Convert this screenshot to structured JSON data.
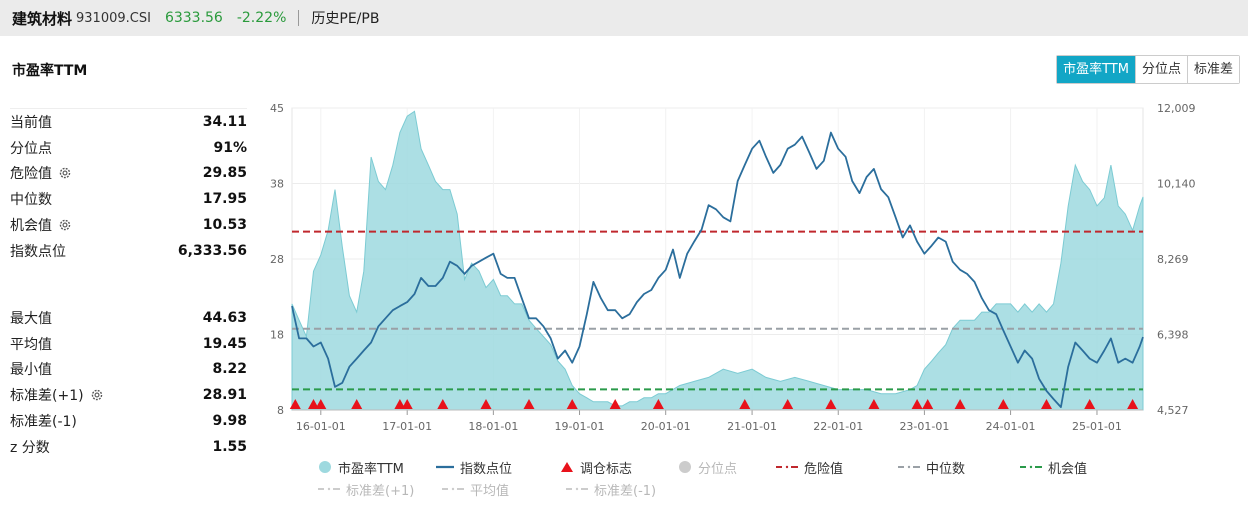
{
  "header": {
    "name": "建筑材料",
    "code": "931009.CSI",
    "price": "6333.56",
    "change": "-2.22%",
    "history_link": "历史PE/PB"
  },
  "section_title": "市盈率TTM",
  "tabs": [
    "市盈率TTM",
    "分位点",
    "标准差"
  ],
  "stats_group1": [
    {
      "label": "当前值",
      "value": "34.11",
      "gear": false
    },
    {
      "label": "分位点",
      "value": "91%",
      "gear": false
    },
    {
      "label": "危险值",
      "value": "29.85",
      "gear": true
    },
    {
      "label": "中位数",
      "value": "17.95",
      "gear": false
    },
    {
      "label": "机会值",
      "value": "10.53",
      "gear": true
    },
    {
      "label": "指数点位",
      "value": "6,333.56",
      "gear": false
    }
  ],
  "stats_group2": [
    {
      "label": "最大值",
      "value": "44.63",
      "gear": false
    },
    {
      "label": "平均值",
      "value": "19.45",
      "gear": false
    },
    {
      "label": "最小值",
      "value": "8.22",
      "gear": false
    },
    {
      "label": "标准差(+1)",
      "value": "28.91",
      "gear": true
    },
    {
      "label": "标准差(-1)",
      "value": "9.98",
      "gear": false
    },
    {
      "label": "z 分数",
      "value": "1.55",
      "gear": false
    }
  ],
  "legend": {
    "row1": [
      "市盈率TTM",
      "指数点位",
      "调仓标志",
      "分位点",
      "危险值",
      "中位数",
      "机会值"
    ],
    "row2": [
      "标准差(+1)",
      "平均值",
      "标准差(-1)"
    ]
  },
  "colors": {
    "pe_fill": "#9ed9df",
    "pe_stroke": "#7ccbd3",
    "index_line": "#2b6e9c",
    "danger": "#c0282d",
    "median": "#9aa0a6",
    "opportunity": "#2a9a4a",
    "marker": "#e8121b",
    "accent_tab": "#12a6c6"
  },
  "chart_data": {
    "type": "area",
    "title": "",
    "x_tick_labels": [
      "16-01-01",
      "17-01-01",
      "18-01-01",
      "19-01-01",
      "20-01-01",
      "21-01-01",
      "22-01-01",
      "23-01-01",
      "24-01-01",
      "25-01-01"
    ],
    "x_range": [
      "2015-09-01",
      "2025-07-15"
    ],
    "left_axis": {
      "label": "",
      "ticks": [
        "45",
        "38",
        "28",
        "18",
        "8"
      ],
      "ylim": [
        8,
        45
      ]
    },
    "right_axis": {
      "label": "",
      "ticks": [
        "12,009",
        "10,140",
        "8,269",
        "6,398",
        "4,527"
      ],
      "ylim": [
        4527,
        12009
      ]
    },
    "grid": true,
    "reference_lines": {
      "danger": 29.85,
      "median": 17.95,
      "opportunity": 10.53
    },
    "series": [
      {
        "name": "市盈率TTM",
        "axis": "left",
        "points": [
          [
            "2015-09-01",
            21
          ],
          [
            "2015-10-01",
            19
          ],
          [
            "2015-11-01",
            17
          ],
          [
            "2015-12-01",
            25
          ],
          [
            "2016-01-01",
            27
          ],
          [
            "2016-02-01",
            30
          ],
          [
            "2016-03-01",
            35
          ],
          [
            "2016-04-01",
            28
          ],
          [
            "2016-05-01",
            22
          ],
          [
            "2016-06-01",
            20
          ],
          [
            "2016-07-01",
            25
          ],
          [
            "2016-08-01",
            39
          ],
          [
            "2016-09-01",
            36
          ],
          [
            "2016-10-01",
            35
          ],
          [
            "2016-11-01",
            38
          ],
          [
            "2016-12-01",
            42
          ],
          [
            "2017-01-01",
            44
          ],
          [
            "2017-02-01",
            44.6
          ],
          [
            "2017-03-01",
            40
          ],
          [
            "2017-04-01",
            38
          ],
          [
            "2017-05-01",
            36
          ],
          [
            "2017-06-01",
            35
          ],
          [
            "2017-07-01",
            35
          ],
          [
            "2017-08-01",
            32
          ],
          [
            "2017-09-01",
            24
          ],
          [
            "2017-10-01",
            26
          ],
          [
            "2017-11-01",
            25
          ],
          [
            "2017-12-01",
            23
          ],
          [
            "2018-01-01",
            24
          ],
          [
            "2018-02-01",
            22
          ],
          [
            "2018-03-01",
            22
          ],
          [
            "2018-04-01",
            21
          ],
          [
            "2018-05-01",
            21
          ],
          [
            "2018-06-01",
            19
          ],
          [
            "2018-07-01",
            18
          ],
          [
            "2018-08-01",
            17
          ],
          [
            "2018-09-01",
            16
          ],
          [
            "2018-10-01",
            14
          ],
          [
            "2018-11-01",
            13
          ],
          [
            "2018-12-01",
            11
          ],
          [
            "2019-01-01",
            10
          ],
          [
            "2019-02-01",
            9.5
          ],
          [
            "2019-03-01",
            9
          ],
          [
            "2019-04-01",
            9
          ],
          [
            "2019-05-01",
            9
          ],
          [
            "2019-06-01",
            8.5
          ],
          [
            "2019-07-01",
            8.5
          ],
          [
            "2019-08-01",
            9
          ],
          [
            "2019-09-01",
            9
          ],
          [
            "2019-10-01",
            9.5
          ],
          [
            "2019-11-01",
            9.5
          ],
          [
            "2019-12-01",
            10
          ],
          [
            "2020-01-01",
            10
          ],
          [
            "2020-03-01",
            11
          ],
          [
            "2020-05-01",
            11.5
          ],
          [
            "2020-07-01",
            12
          ],
          [
            "2020-09-01",
            13
          ],
          [
            "2020-11-01",
            12.5
          ],
          [
            "2021-01-01",
            13
          ],
          [
            "2021-03-01",
            12
          ],
          [
            "2021-05-01",
            11.5
          ],
          [
            "2021-07-01",
            12
          ],
          [
            "2021-09-01",
            11.5
          ],
          [
            "2021-11-01",
            11
          ],
          [
            "2022-01-01",
            10.5
          ],
          [
            "2022-03-01",
            10.5
          ],
          [
            "2022-05-01",
            10.5
          ],
          [
            "2022-07-01",
            10
          ],
          [
            "2022-09-01",
            10
          ],
          [
            "2022-11-01",
            10.5
          ],
          [
            "2022-12-01",
            11
          ],
          [
            "2023-01-01",
            13
          ],
          [
            "2023-02-01",
            14
          ],
          [
            "2023-03-01",
            15
          ],
          [
            "2023-04-01",
            16
          ],
          [
            "2023-05-01",
            18
          ],
          [
            "2023-06-01",
            19
          ],
          [
            "2023-07-01",
            19
          ],
          [
            "2023-08-01",
            19
          ],
          [
            "2023-09-01",
            20
          ],
          [
            "2023-10-01",
            20
          ],
          [
            "2023-11-01",
            21
          ],
          [
            "2023-12-01",
            21
          ],
          [
            "2024-01-01",
            21
          ],
          [
            "2024-02-01",
            20
          ],
          [
            "2024-03-01",
            21
          ],
          [
            "2024-04-01",
            20
          ],
          [
            "2024-05-01",
            21
          ],
          [
            "2024-06-01",
            20
          ],
          [
            "2024-07-01",
            21
          ],
          [
            "2024-08-01",
            26
          ],
          [
            "2024-09-01",
            33
          ],
          [
            "2024-10-01",
            38
          ],
          [
            "2024-11-01",
            36
          ],
          [
            "2024-12-01",
            35
          ],
          [
            "2025-01-01",
            33
          ],
          [
            "2025-02-01",
            34
          ],
          [
            "2025-03-01",
            38
          ],
          [
            "2025-04-01",
            33
          ],
          [
            "2025-05-01",
            32
          ],
          [
            "2025-06-01",
            30
          ],
          [
            "2025-07-01",
            33
          ],
          [
            "2025-07-15",
            34.11
          ]
        ]
      },
      {
        "name": "指数点位",
        "axis": "right",
        "points": [
          [
            "2015-09-01",
            7100
          ],
          [
            "2015-10-01",
            6300
          ],
          [
            "2015-11-01",
            6300
          ],
          [
            "2015-12-01",
            6100
          ],
          [
            "2016-01-01",
            6200
          ],
          [
            "2016-02-01",
            5800
          ],
          [
            "2016-03-01",
            5100
          ],
          [
            "2016-04-01",
            5200
          ],
          [
            "2016-05-01",
            5600
          ],
          [
            "2016-06-01",
            5800
          ],
          [
            "2016-07-01",
            6000
          ],
          [
            "2016-08-01",
            6200
          ],
          [
            "2016-09-01",
            6600
          ],
          [
            "2016-10-01",
            6800
          ],
          [
            "2016-11-01",
            7000
          ],
          [
            "2016-12-01",
            7100
          ],
          [
            "2017-01-01",
            7200
          ],
          [
            "2017-02-01",
            7400
          ],
          [
            "2017-03-01",
            7800
          ],
          [
            "2017-04-01",
            7600
          ],
          [
            "2017-05-01",
            7600
          ],
          [
            "2017-06-01",
            7800
          ],
          [
            "2017-07-01",
            8200
          ],
          [
            "2017-08-01",
            8100
          ],
          [
            "2017-09-01",
            7900
          ],
          [
            "2017-10-01",
            8100
          ],
          [
            "2017-11-01",
            8200
          ],
          [
            "2017-12-01",
            8300
          ],
          [
            "2018-01-01",
            8400
          ],
          [
            "2018-02-01",
            7900
          ],
          [
            "2018-03-01",
            7800
          ],
          [
            "2018-04-01",
            7800
          ],
          [
            "2018-05-01",
            7300
          ],
          [
            "2018-06-01",
            6800
          ],
          [
            "2018-07-01",
            6800
          ],
          [
            "2018-08-01",
            6600
          ],
          [
            "2018-09-01",
            6300
          ],
          [
            "2018-10-01",
            5800
          ],
          [
            "2018-11-01",
            6000
          ],
          [
            "2018-12-01",
            5700
          ],
          [
            "2019-01-01",
            6100
          ],
          [
            "2019-02-01",
            6900
          ],
          [
            "2019-03-01",
            7700
          ],
          [
            "2019-04-01",
            7300
          ],
          [
            "2019-05-01",
            7000
          ],
          [
            "2019-06-01",
            7000
          ],
          [
            "2019-07-01",
            6800
          ],
          [
            "2019-08-01",
            6900
          ],
          [
            "2019-09-01",
            7200
          ],
          [
            "2019-10-01",
            7400
          ],
          [
            "2019-11-01",
            7500
          ],
          [
            "2019-12-01",
            7800
          ],
          [
            "2020-01-01",
            8000
          ],
          [
            "2020-02-01",
            8500
          ],
          [
            "2020-03-01",
            7800
          ],
          [
            "2020-04-01",
            8400
          ],
          [
            "2020-05-01",
            8700
          ],
          [
            "2020-06-01",
            9000
          ],
          [
            "2020-07-01",
            9600
          ],
          [
            "2020-08-01",
            9500
          ],
          [
            "2020-09-01",
            9300
          ],
          [
            "2020-10-01",
            9200
          ],
          [
            "2020-11-01",
            10200
          ],
          [
            "2020-12-01",
            10600
          ],
          [
            "2021-01-01",
            11000
          ],
          [
            "2021-02-01",
            11200
          ],
          [
            "2021-03-01",
            10800
          ],
          [
            "2021-04-01",
            10400
          ],
          [
            "2021-05-01",
            10600
          ],
          [
            "2021-06-01",
            11000
          ],
          [
            "2021-07-01",
            11100
          ],
          [
            "2021-08-01",
            11300
          ],
          [
            "2021-09-01",
            10900
          ],
          [
            "2021-10-01",
            10500
          ],
          [
            "2021-11-01",
            10700
          ],
          [
            "2021-12-01",
            11400
          ],
          [
            "2022-01-01",
            11000
          ],
          [
            "2022-02-01",
            10800
          ],
          [
            "2022-03-01",
            10200
          ],
          [
            "2022-04-01",
            9900
          ],
          [
            "2022-05-01",
            10300
          ],
          [
            "2022-06-01",
            10500
          ],
          [
            "2022-07-01",
            10000
          ],
          [
            "2022-08-01",
            9800
          ],
          [
            "2022-09-01",
            9300
          ],
          [
            "2022-10-01",
            8800
          ],
          [
            "2022-11-01",
            9100
          ],
          [
            "2022-12-01",
            8700
          ],
          [
            "2023-01-01",
            8400
          ],
          [
            "2023-02-01",
            8600
          ],
          [
            "2023-03-01",
            8800
          ],
          [
            "2023-04-01",
            8700
          ],
          [
            "2023-05-01",
            8200
          ],
          [
            "2023-06-01",
            8000
          ],
          [
            "2023-07-01",
            7900
          ],
          [
            "2023-08-01",
            7700
          ],
          [
            "2023-09-01",
            7300
          ],
          [
            "2023-10-01",
            7000
          ],
          [
            "2023-11-01",
            6900
          ],
          [
            "2023-12-01",
            6500
          ],
          [
            "2024-01-01",
            6100
          ],
          [
            "2024-02-01",
            5700
          ],
          [
            "2024-03-01",
            6000
          ],
          [
            "2024-04-01",
            5800
          ],
          [
            "2024-05-01",
            5300
          ],
          [
            "2024-06-01",
            5000
          ],
          [
            "2024-07-01",
            4800
          ],
          [
            "2024-08-01",
            4600
          ],
          [
            "2024-09-01",
            5600
          ],
          [
            "2024-10-01",
            6200
          ],
          [
            "2024-11-01",
            6000
          ],
          [
            "2024-12-01",
            5800
          ],
          [
            "2025-01-01",
            5700
          ],
          [
            "2025-02-01",
            6000
          ],
          [
            "2025-03-01",
            6300
          ],
          [
            "2025-04-01",
            5700
          ],
          [
            "2025-05-01",
            5800
          ],
          [
            "2025-06-01",
            5700
          ],
          [
            "2025-07-01",
            6100
          ],
          [
            "2025-07-15",
            6333.56
          ]
        ]
      }
    ],
    "rebalance_markers": [
      "2015-09-15",
      "2015-12-01",
      "2016-01-01",
      "2016-06-01",
      "2016-12-01",
      "2017-01-01",
      "2017-06-01",
      "2017-12-01",
      "2018-06-01",
      "2018-12-01",
      "2019-06-01",
      "2019-12-01",
      "2020-12-01",
      "2021-06-01",
      "2021-12-01",
      "2022-06-01",
      "2022-12-01",
      "2023-01-15",
      "2023-06-01",
      "2023-12-01",
      "2024-06-01",
      "2024-12-01",
      "2025-06-01"
    ]
  }
}
